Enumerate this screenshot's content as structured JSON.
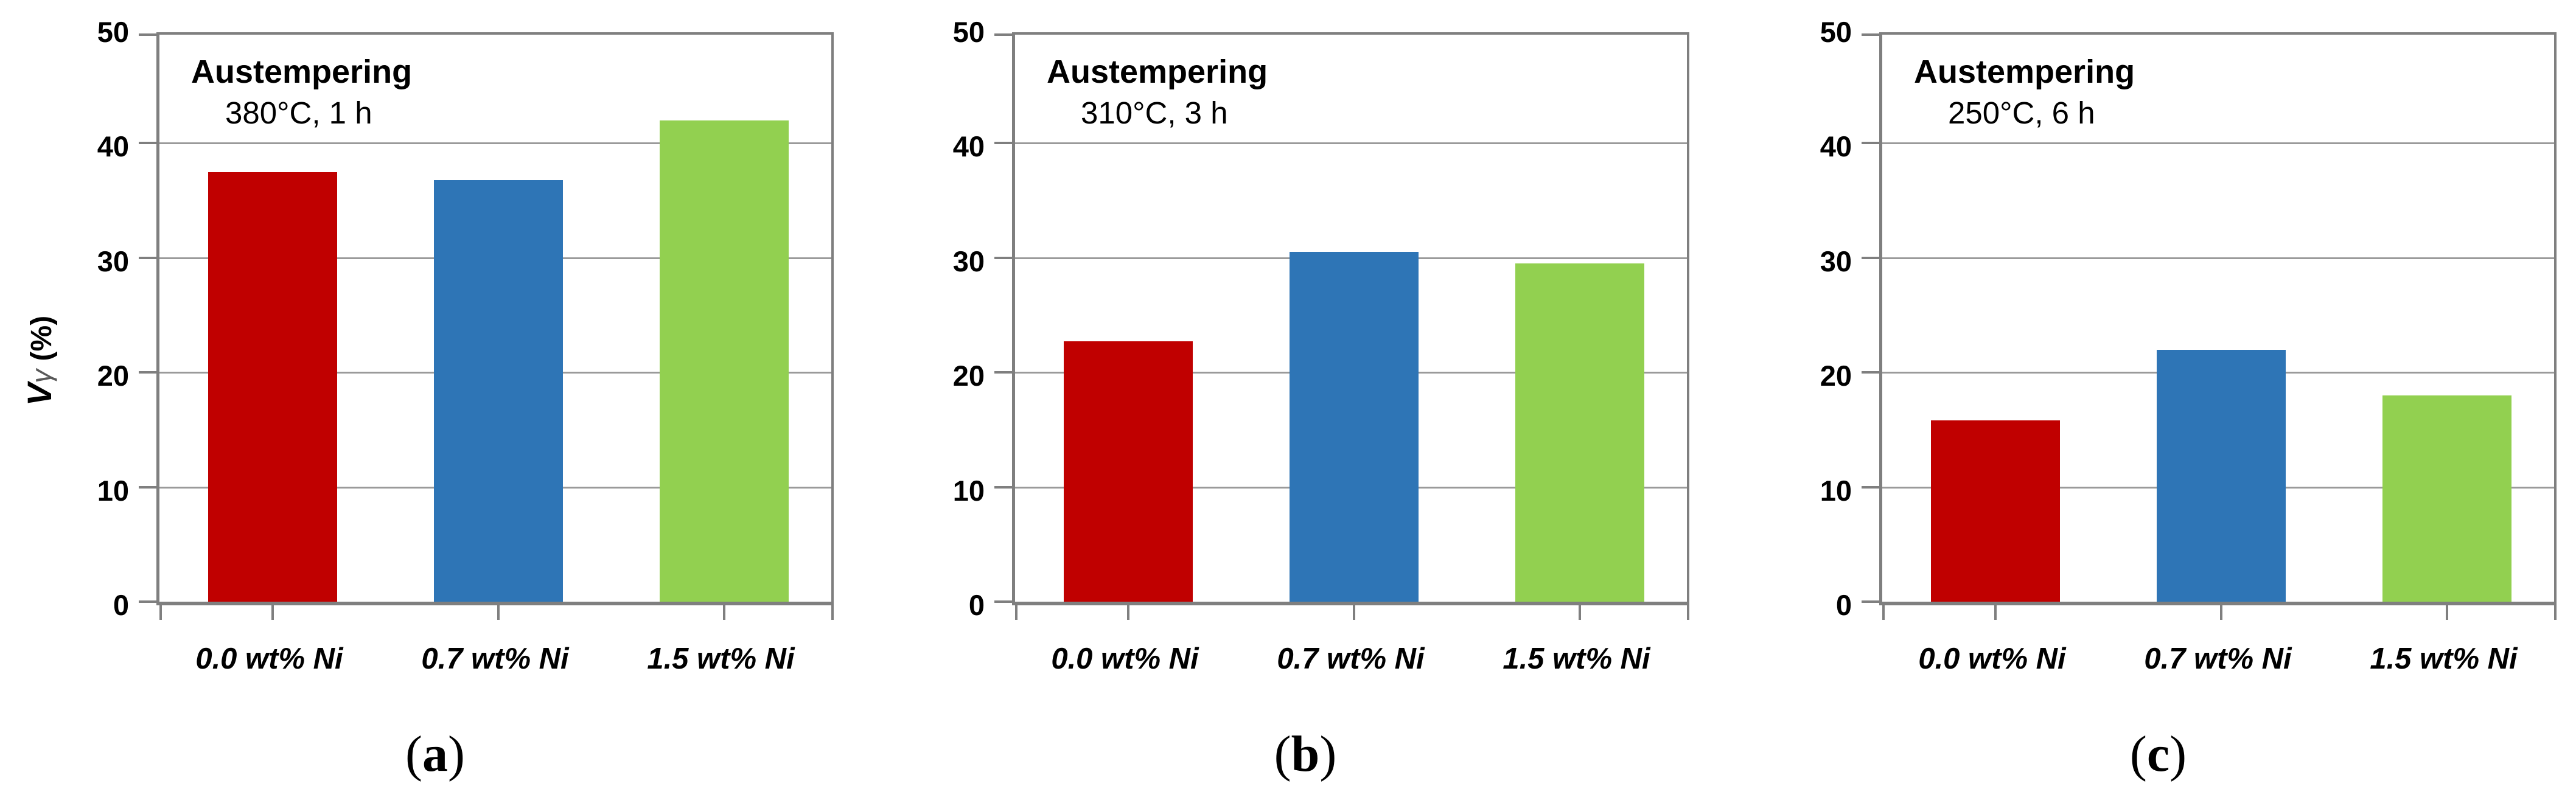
{
  "figure": {
    "background": "#ffffff",
    "border_color": "#7f7f7f",
    "gridline_color": "#9a9a9a",
    "ylabel": {
      "symbol": "V",
      "subscript": "γ",
      "unit": " (%)"
    }
  },
  "chart_data": [
    {
      "type": "bar",
      "title": "Austempering",
      "subtitle": "380°C, 1 h",
      "categories": [
        "0.0 wt% Ni",
        "0.7 wt% Ni",
        "1.5 wt% Ni"
      ],
      "values": [
        37.5,
        36.8,
        42.0
      ],
      "bar_colors": [
        "#c00000",
        "#2e75b6",
        "#92d050"
      ],
      "ylabel": "Vγ (%)",
      "ylim": [
        0,
        50
      ],
      "yticks": [
        0,
        10,
        20,
        30,
        40,
        50
      ],
      "grid": true,
      "legend": "none",
      "caption": {
        "open": "(",
        "letter": "a",
        "close": ")"
      }
    },
    {
      "type": "bar",
      "title": "Austempering",
      "subtitle": "310°C, 3 h",
      "categories": [
        "0.0 wt% Ni",
        "0.7 wt% Ni",
        "1.5 wt% Ni"
      ],
      "values": [
        22.7,
        30.5,
        29.5
      ],
      "bar_colors": [
        "#c00000",
        "#2e75b6",
        "#92d050"
      ],
      "ylabel": "",
      "ylim": [
        0,
        50
      ],
      "yticks": [
        0,
        10,
        20,
        30,
        40,
        50
      ],
      "grid": true,
      "legend": "none",
      "caption": {
        "open": "(",
        "letter": "b",
        "close": ")"
      }
    },
    {
      "type": "bar",
      "title": "Austempering",
      "subtitle": "250°C, 6 h",
      "categories": [
        "0.0 wt% Ni",
        "0.7 wt% Ni",
        "1.5 wt% Ni"
      ],
      "values": [
        15.8,
        22.0,
        18.0
      ],
      "bar_colors": [
        "#c00000",
        "#2e75b6",
        "#92d050"
      ],
      "ylabel": "",
      "ylim": [
        0,
        50
      ],
      "yticks": [
        0,
        10,
        20,
        30,
        40,
        50
      ],
      "grid": true,
      "legend": "none",
      "caption": {
        "open": "(",
        "letter": "c",
        "close": ")"
      }
    }
  ]
}
